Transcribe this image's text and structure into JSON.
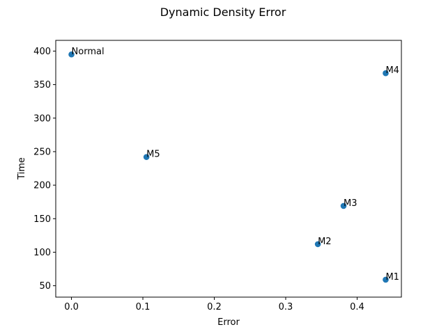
{
  "chart_data": {
    "type": "scatter",
    "title": "Dynamic Density Error",
    "xlabel": "Error",
    "ylabel": "Time",
    "xlim": [
      -0.022,
      0.462
    ],
    "ylim": [
      33,
      416
    ],
    "xticks": [
      0.0,
      0.1,
      0.2,
      0.3,
      0.4
    ],
    "xtick_labels": [
      "0.0",
      "0.1",
      "0.2",
      "0.3",
      "0.4"
    ],
    "yticks": [
      50,
      100,
      150,
      200,
      250,
      300,
      350,
      400
    ],
    "ytick_labels": [
      "50",
      "100",
      "150",
      "200",
      "250",
      "300",
      "350",
      "400"
    ],
    "grid": false,
    "color": "#1f77b4",
    "points": [
      {
        "label": "Normal",
        "x": 0.0,
        "y": 395
      },
      {
        "label": "M1",
        "x": 0.44,
        "y": 59
      },
      {
        "label": "M2",
        "x": 0.345,
        "y": 112
      },
      {
        "label": "M3",
        "x": 0.381,
        "y": 169
      },
      {
        "label": "M4",
        "x": 0.44,
        "y": 367
      },
      {
        "label": "M5",
        "x": 0.105,
        "y": 242
      }
    ]
  }
}
